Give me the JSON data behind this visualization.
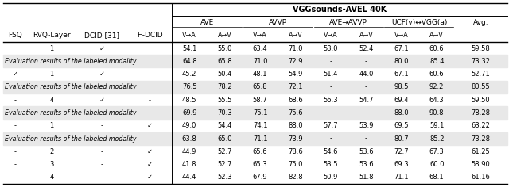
{
  "header1": "VGGsounds-AVEL 40K",
  "left_headers": [
    "FSQ",
    "RVQ-Layer",
    "DCID [31]",
    "H-DCID"
  ],
  "right_header": "Avg.",
  "group_labels": [
    "AVE",
    "AVVP",
    "AVE→AVVP",
    "UCF(v)↔VGG(a)"
  ],
  "sub_labels": [
    "V→A",
    "A→V",
    "V→A",
    "A→V",
    "V→A",
    "A→V",
    "V→A",
    "A→V"
  ],
  "rows": [
    {
      "type": "data",
      "cells": [
        "-",
        "1",
        "✓",
        "-",
        "54.1",
        "55.0",
        "63.4",
        "71.0",
        "53.0",
        "52.4",
        "67.1",
        "60.6",
        "59.58"
      ]
    },
    {
      "type": "eval",
      "cells": [
        "Evaluation results of the labeled modality",
        "64.8",
        "65.8",
        "71.0",
        "72.9",
        "-",
        "-",
        "80.0",
        "85.4",
        "73.32"
      ]
    },
    {
      "type": "data",
      "cells": [
        "✓",
        "1",
        "✓",
        "-",
        "45.2",
        "50.4",
        "48.1",
        "54.9",
        "51.4",
        "44.0",
        "67.1",
        "60.6",
        "52.71"
      ]
    },
    {
      "type": "eval",
      "cells": [
        "Evaluation results of the labeled modality",
        "76.5",
        "78.2",
        "65.8",
        "72.1",
        "-",
        "-",
        "98.5",
        "92.2",
        "80.55"
      ]
    },
    {
      "type": "data",
      "cells": [
        "-",
        "4",
        "✓",
        "-",
        "48.5",
        "55.5",
        "58.7",
        "68.6",
        "56.3",
        "54.7",
        "69.4",
        "64.3",
        "59.50"
      ]
    },
    {
      "type": "eval",
      "cells": [
        "Evaluation results of the labeled modality",
        "69.9",
        "70.3",
        "75.1",
        "75.6",
        "-",
        "-",
        "88.0",
        "90.8",
        "78.28"
      ]
    },
    {
      "type": "data",
      "cells": [
        "-",
        "1",
        "-",
        "✓",
        "49.0",
        "54.4",
        "74.1",
        "88.0",
        "57.7",
        "53.9",
        "69.5",
        "59.1",
        "63.22"
      ]
    },
    {
      "type": "eval",
      "cells": [
        "Evaluation results of the labeled modality",
        "63.8",
        "65.0",
        "71.1",
        "73.9",
        "-",
        "-",
        "80.7",
        "85.2",
        "73.28"
      ]
    },
    {
      "type": "data",
      "cells": [
        "-",
        "2",
        "-",
        "✓",
        "44.9",
        "52.7",
        "65.6",
        "78.6",
        "54.6",
        "53.6",
        "72.7",
        "67.3",
        "61.25"
      ]
    },
    {
      "type": "data",
      "cells": [
        "-",
        "3",
        "-",
        "✓",
        "41.8",
        "52.7",
        "65.3",
        "75.0",
        "53.5",
        "53.6",
        "69.3",
        "60.0",
        "58.90"
      ]
    },
    {
      "type": "data",
      "cells": [
        "-",
        "4",
        "-",
        "✓",
        "44.4",
        "52.3",
        "67.9",
        "82.8",
        "50.9",
        "51.8",
        "71.1",
        "68.1",
        "61.16"
      ]
    }
  ],
  "bg_color": "#ffffff",
  "eval_row_bg": "#e8e8e8",
  "line_color": "#000000",
  "text_color": "#000000",
  "fontsize_title": 7.0,
  "fontsize_group": 6.5,
  "fontsize_sub": 5.8,
  "fontsize_header": 6.5,
  "fontsize_data": 6.0,
  "fontsize_eval": 5.7
}
